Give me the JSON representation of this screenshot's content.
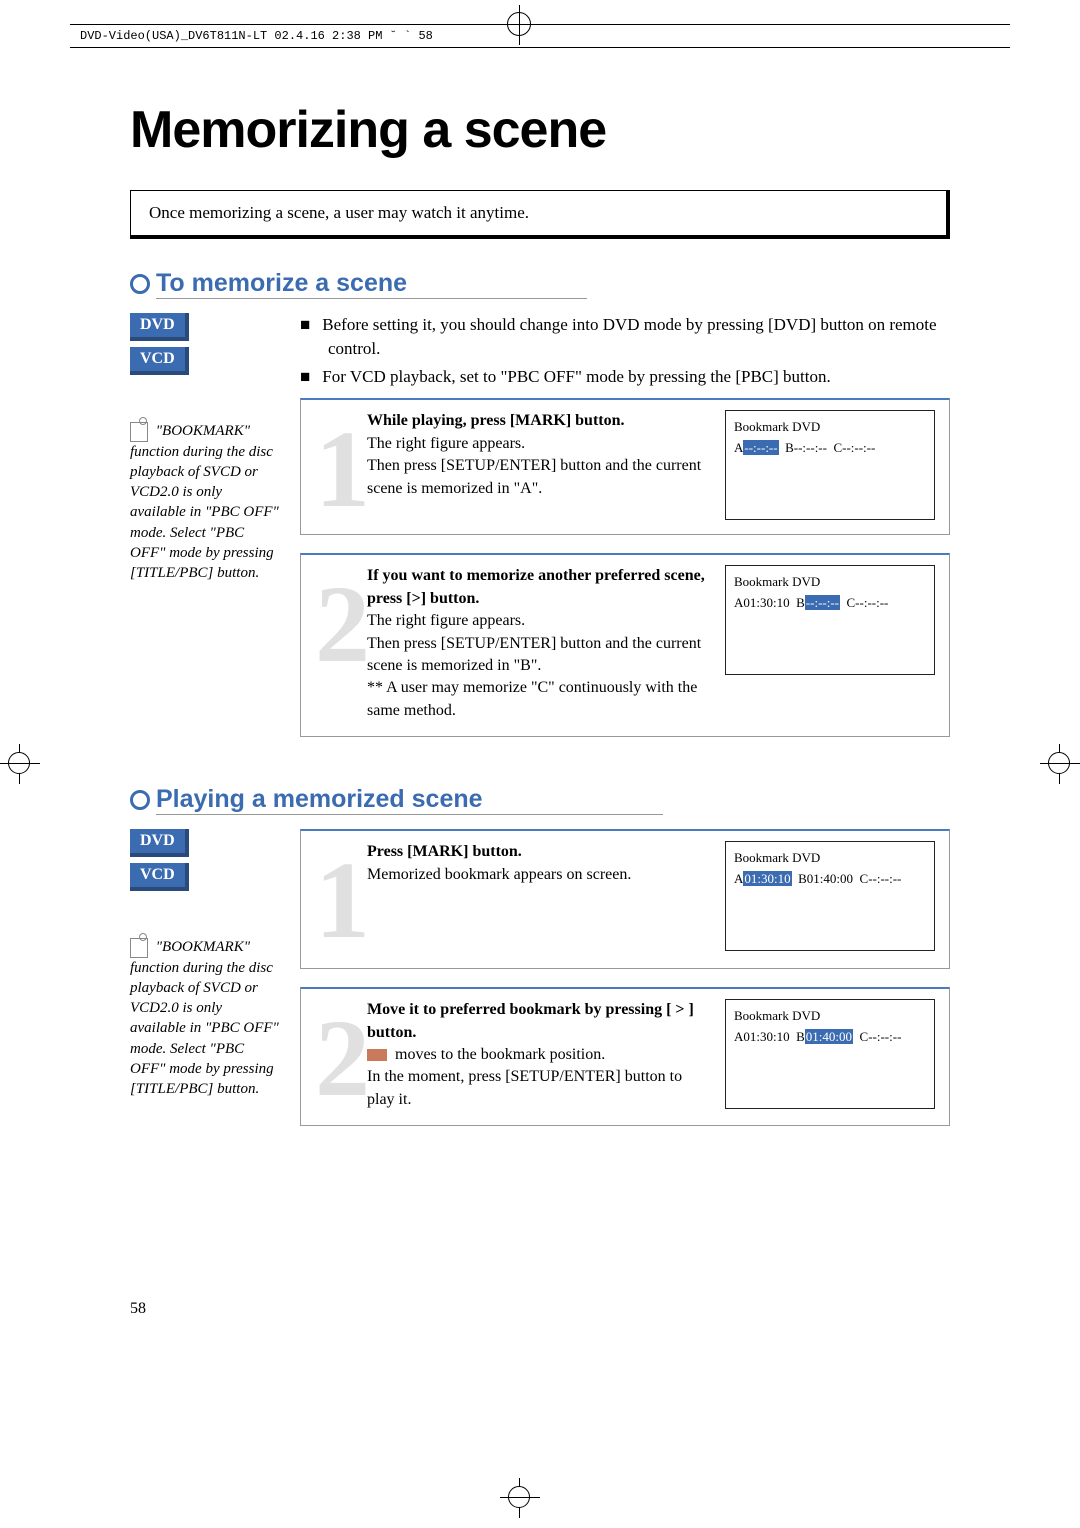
{
  "header_text": "DVD-Video(USA)_DV6T811N-LT  02.4.16 2:38 PM  ˘ ` 58",
  "page_title": "Memorizing a scene",
  "intro": "Once memorizing a scene, a user may watch it anytime.",
  "page_number": "58",
  "colors": {
    "accent": "#3b6bb0",
    "step_num": "#e0e0e0",
    "highlight_bg": "#3b6bb0",
    "orange_box": "#c97a5a",
    "border_gray": "#999999",
    "text": "#000000"
  },
  "section1": {
    "title": "To memorize a scene",
    "badges": [
      "DVD",
      "VCD"
    ],
    "sidebar_note": "\"BOOKMARK\" function during the disc playback of SVCD or VCD2.0 is only available in \"PBC OFF\" mode. Select \"PBC OFF\" mode by pressing [TITLE/PBC] button.",
    "prelude": [
      "Before setting it, you should change into DVD mode by pressing [DVD] button on remote control.",
      "For VCD playback, set to \"PBC OFF\" mode by pressing the [PBC] button."
    ],
    "steps": [
      {
        "num": "1",
        "title": "While playing, press [MARK] button.",
        "body": "The right figure appears.\nThen press [SETUP/ENTER] button and the current scene is memorized in \"A\".",
        "screen": {
          "line1": "Bookmark    DVD",
          "entries": [
            {
              "label": "A",
              "value": "--:--:--",
              "highlight": true
            },
            {
              "label": "B",
              "value": "--:--:--",
              "highlight": false
            },
            {
              "label": "C",
              "value": "--:--:--",
              "highlight": false
            }
          ]
        }
      },
      {
        "num": "2",
        "title": "If you want to memorize another preferred scene, press [>] button.",
        "body": "The right figure appears.\nThen press [SETUP/ENTER] button and the current scene is memorized in \"B\".",
        "footnote": "** A user may memorize \"C\" continuously with the same method.",
        "screen": {
          "line1": "Bookmark    DVD",
          "entries": [
            {
              "label": "A",
              "value": "01:30:10",
              "highlight": false
            },
            {
              "label": "B",
              "value": "--:--:--",
              "highlight": true
            },
            {
              "label": "C",
              "value": "--:--:--",
              "highlight": false
            }
          ]
        }
      }
    ]
  },
  "section2": {
    "title": "Playing a memorized scene",
    "badges": [
      "DVD",
      "VCD"
    ],
    "sidebar_note": "\"BOOKMARK\" function during the disc playback of SVCD or VCD2.0 is only available in \"PBC OFF\" mode. Select \"PBC OFF\" mode by pressing [TITLE/PBC] button.",
    "steps": [
      {
        "num": "1",
        "title": "Press [MARK] button.",
        "body": "Memorized bookmark appears on screen.",
        "screen": {
          "line1": "Bookmark    DVD",
          "entries": [
            {
              "label": "A",
              "value": "01:30:10",
              "highlight": true
            },
            {
              "label": "B",
              "value": "01:40:00",
              "highlight": false
            },
            {
              "label": "C",
              "value": "--:--:--",
              "highlight": false
            }
          ]
        }
      },
      {
        "num": "2",
        "title": "Move it to preferred bookmark by pressing [ > ] button.",
        "body_pre": "",
        "body_mid": "moves to the bookmark position.",
        "body_post": "In the moment, press [SETUP/ENTER] button to play it.",
        "screen": {
          "line1": "Bookmark    DVD",
          "entries": [
            {
              "label": "A",
              "value": "01:30:10",
              "highlight": false
            },
            {
              "label": "B",
              "value": "01:40:00",
              "highlight": true
            },
            {
              "label": "C",
              "value": "--:--:--",
              "highlight": false
            }
          ]
        }
      }
    ]
  }
}
